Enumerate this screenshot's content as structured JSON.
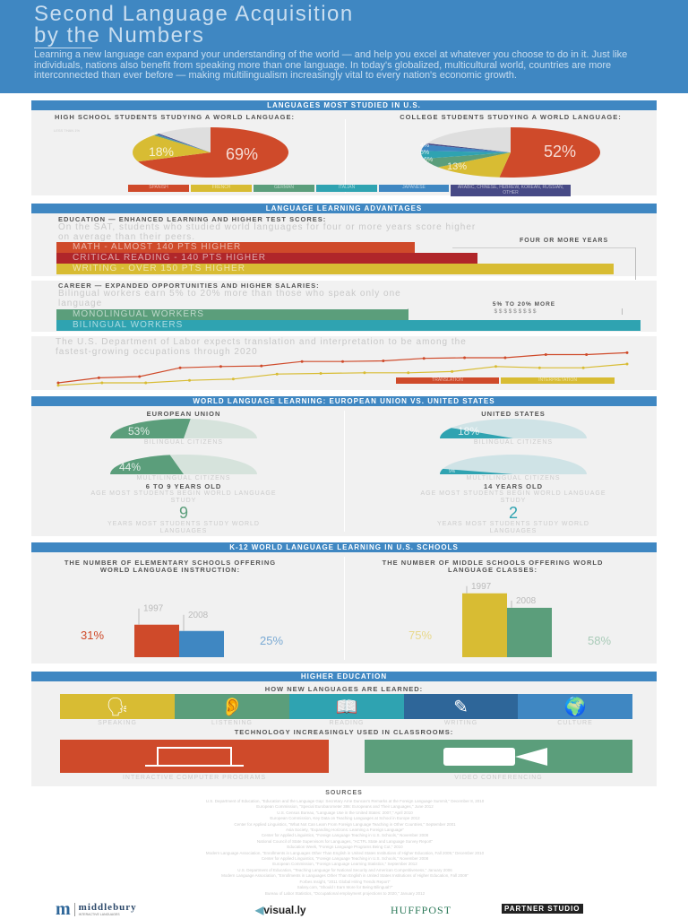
{
  "header": {
    "title_line1": "Second Language Acquisition",
    "title_line2": "by the Numbers",
    "intro": "Learning a new language can expand your understanding of the world — and help you excel at whatever you choose to do in it. Just like individuals, nations also benefit from speaking more than one language. In today's globalized, multicultural world, countries are more interconnected than ever before — making multilingualism increasingly vital to every nation's economic growth."
  },
  "colors": {
    "blue": "#3f87c2",
    "red": "#cf4a2a",
    "yellow": "#d8bc33",
    "green": "#5b9e7b",
    "teal": "#2fa3b1",
    "navy": "#474a86",
    "darkred": "#b0262a"
  },
  "languages": {
    "heading": "LANGUAGES MOST STUDIED IN U.S.",
    "hs_title": "HIGH SCHOOL STUDENTS STUDYING A WORLD LANGUAGE:",
    "college_title": "COLLEGE STUDENTS STUDYING A WORLD LANGUAGE:",
    "less_than": "LESS THAN 1%",
    "legend": [
      "SPANISH",
      "FRENCH",
      "GERMAN",
      "ITALIAN",
      "JAPANESE",
      "ARABIC, CHINESE, HEBREW, KOREAN, RUSSIAN, OTHER"
    ]
  },
  "chart_data": [
    {
      "type": "pie",
      "title": "HIGH SCHOOL STUDENTS STUDYING A WORLD LANGUAGE:",
      "slices": [
        {
          "name": "SPANISH",
          "value": 69,
          "label": "69%"
        },
        {
          "name": "FRENCH",
          "value": 18,
          "label": "18%"
        },
        {
          "name": "GERMAN",
          "value": 0.5
        },
        {
          "name": "JAPANESE",
          "value": 0.5
        },
        {
          "name": "ARABIC, CHINESE, HEBREW, KOREAN, RUSSIAN, OTHER",
          "value": 0.5
        },
        {
          "name": "other",
          "value": 11.5
        }
      ]
    },
    {
      "type": "pie",
      "title": "COLLEGE STUDENTS STUDYING A WORLD LANGUAGE:",
      "slices": [
        {
          "name": "SPANISH",
          "value": 52,
          "label": "52%"
        },
        {
          "name": "FRENCH",
          "value": 13,
          "label": "13%"
        },
        {
          "name": "GERMAN",
          "value": 6,
          "label": "6%"
        },
        {
          "name": "ITALIAN",
          "value": 5,
          "label": "5%"
        },
        {
          "name": "JAPANESE",
          "value": 4,
          "label": "4%"
        },
        {
          "name": "ARABIC, CHINESE, HEBREW, KOREAN, RUSSIAN, OTHER",
          "value": 1
        },
        {
          "name": "other",
          "value": 19
        }
      ]
    },
    {
      "type": "line",
      "series": [
        {
          "name": "TRANSLATION",
          "values": [
            0,
            4,
            5,
            12,
            13,
            13.5,
            17,
            17,
            17.5,
            19.5,
            20,
            20,
            22.5,
            22.5,
            24
          ]
        },
        {
          "name": "INTERPRETATION",
          "values": [
            -2,
            0,
            0,
            2,
            3,
            7,
            7.5,
            8,
            8,
            9,
            13,
            12,
            12,
            15
          ]
        }
      ]
    },
    {
      "type": "bar",
      "title": "THE NUMBER OF ELEMENTARY SCHOOLS OFFERING WORLD LANGUAGE INSTRUCTION:",
      "categories": [
        "1997",
        "2008"
      ],
      "values": [
        31,
        25
      ],
      "labels": [
        "31%",
        "25%"
      ]
    },
    {
      "type": "bar",
      "title": "THE NUMBER OF MIDDLE SCHOOLS OFFERING WORLD LANGUAGE CLASSES:",
      "categories": [
        "1997",
        "2008"
      ],
      "values": [
        75,
        58
      ],
      "labels": [
        "75%",
        "58%"
      ]
    }
  ],
  "advantages": {
    "heading": "LANGUAGE LEARNING ADVANTAGES",
    "edu_title": "EDUCATION — ENHANCED LEARNING AND HIGHER TEST SCORES:",
    "edu_text": "On the SAT, students who studied world languages for four or more years score higher on average than their peers.",
    "math": "MATH - ALMOST 140 PTS HIGHER",
    "reading": "CRITICAL READING - 140 PTS HIGHER",
    "writing": "WRITING - OVER 150 PTS HIGHER",
    "four_years": "FOUR OR MORE YEARS",
    "career_title": "CAREER — EXPANDED OPPORTUNITIES AND HIGHER SALARIES:",
    "career_text": "Bilingual workers earn 5% to 20% more than those who speak only one language",
    "mono": "MONOLINGUAL WORKERS",
    "bi": "BILINGUAL WORKERS",
    "more": "5% TO 20% MORE",
    "dollars": "$ $ $ $ $ $ $ $ $",
    "labor_text": "The U.S. Department of Labor expects translation and interpretation to be among the fastest-growing occupations through 2020",
    "translation": "TRANSLATION",
    "interpretation": "INTERPRETATION"
  },
  "euus": {
    "heading": "WORLD LANGUAGE LEARNING: EUROPEAN UNION VS. UNITED STATES",
    "eu": {
      "title": "EUROPEAN UNION",
      "bilingual": "53%",
      "bilingual_value": 53,
      "multilingual": "44%",
      "multilingual_value": 44,
      "age": "6 TO 9 YEARS OLD",
      "years": "9"
    },
    "us": {
      "title": "UNITED STATES",
      "bilingual": "18%",
      "bilingual_value": 18,
      "multilingual": "9%",
      "multilingual_value": 9,
      "age": "14 YEARS OLD",
      "years": "2"
    },
    "bilingual_label": "BILINGUAL CITIZENS",
    "multilingual_label": "MULTILINGUAL CITIZENS",
    "age_label": "AGE MOST STUDENTS BEGIN WORLD LANGUAGE STUDY",
    "years_label": "YEARS MOST STUDENTS STUDY WORLD LANGUAGES"
  },
  "k12": {
    "heading": "K-12 WORLD LANGUAGE LEARNING IN U.S. SCHOOLS",
    "elem_title": "THE NUMBER OF ELEMENTARY SCHOOLS OFFERING WORLD LANGUAGE INSTRUCTION:",
    "middle_title": "THE NUMBER OF MIDDLE SCHOOLS OFFERING WORLD LANGUAGE CLASSES:",
    "y1": "1997",
    "y2": "2008",
    "e1": "31%",
    "e2": "25%",
    "m1": "75%",
    "m2": "58%"
  },
  "higher": {
    "heading": "HIGHER EDUCATION",
    "how": "HOW NEW LANGUAGES ARE LEARNED:",
    "tiles": [
      "SPEAKING",
      "LISTENING",
      "READING",
      "WRITING",
      "CULTURE"
    ],
    "tech": "TECHNOLOGY INCREASINGLY USED IN CLASSROOMS:",
    "computer": "INTERACTIVE COMPUTER PROGRAMS",
    "video": "VIDEO CONFERENCING"
  },
  "sources": {
    "heading": "SOURCES",
    "lines": [
      "U.S. Department of Education, \"Education and the Language Gap: Secretary Arne Duncan's Remarks at the Foreign Language Summit,\" December 8, 2010",
      "European Commission, \"Special Eurobarometer 386: Europeans and Their Languages,\" June 2012",
      "U.S. Census Bureau, \"Language Use in the United States: 2007,\" April 2010",
      "European Commission, Key Data on Teaching Languages at School in Europe 2012",
      "Center for Applied Linguistics, \"What Not Can Learn From Foreign Language Teaching in Other Countries,\" September 2001",
      "Asia Society, \"Expanding Horizons: Learning a Foreign Language\"",
      "Center for Applied Linguistics, \"Foreign Language Teaching in U.S. Schools,\" November 2008",
      "National Council of State Supervisors for Languages, \"ACTFL State and Language Survey Report\"",
      "Education Week, \"Foreign Language Programs Being Cut,\" 2010",
      "Modern Language Association, \"Enrollments in Languages Other Than English in United States Institutions of Higher Education, Fall 2009,\" December 2010",
      "Center for Applied Linguistics, \"Foreign Language Teaching in U.S. Schools,\" November 2008",
      "European Commission, \"Foreign Language Learning Statistics,\" September 2012",
      "U.S. Department of Education, \"Teaching Language for National Security and American Competitiveness,\" January 2006",
      "Modern Language Association, \"Enrollments in Languages Other Than English in United States Institutions of Higher Education, Fall 2009\"",
      "Forbes Insight, \"2011 Global Hiring Trends Report\"",
      "Salary.com, \"Should I Earn More for Being Bilingual?\"",
      "Bureau of Labor Statistics, \"Occupational employment projections to 2020,\" January 2012"
    ]
  },
  "footer": {
    "middlebury": "middlebury",
    "middlebury_sub": "INTERACTIVE LANGUAGES",
    "visually": "visual.ly",
    "huffpost": "HUFFPOST",
    "partner": "PARTNER STUDIO"
  }
}
